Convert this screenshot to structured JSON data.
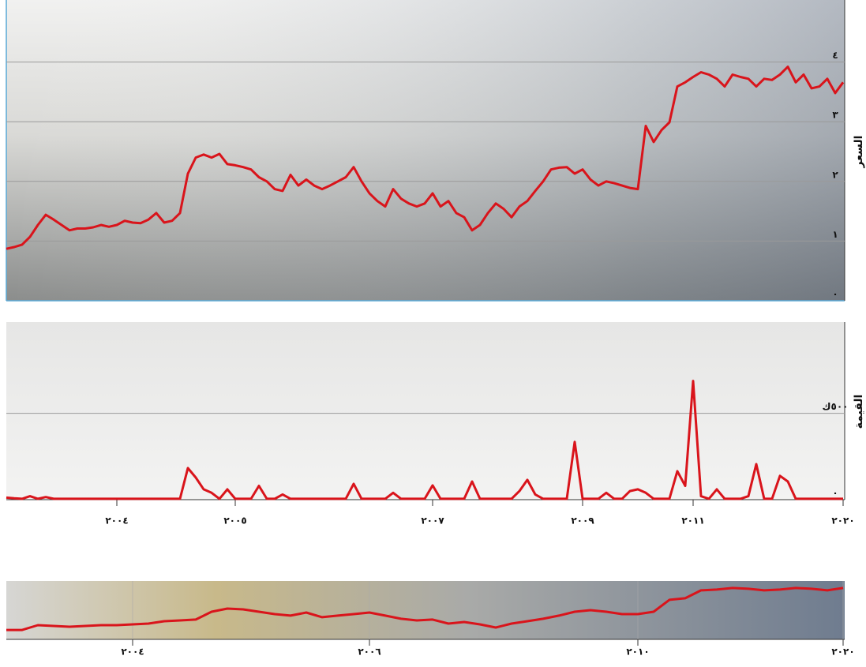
{
  "chart_data": [
    {
      "type": "line",
      "y_label": "السعر",
      "color": "#d9141b",
      "grid": true,
      "ylim": [
        0,
        5
      ],
      "yticks": [
        {
          "value": 0,
          "label": "٠"
        },
        {
          "value": 1,
          "label": "١"
        },
        {
          "value": 2,
          "label": "٢"
        },
        {
          "value": 3,
          "label": "٣"
        },
        {
          "value": 4,
          "label": "٤"
        }
      ],
      "values": [
        0.87,
        0.9,
        0.94,
        1.07,
        1.27,
        1.44,
        1.36,
        1.27,
        1.18,
        1.21,
        1.21,
        1.23,
        1.27,
        1.24,
        1.27,
        1.34,
        1.31,
        1.3,
        1.36,
        1.47,
        1.31,
        1.34,
        1.47,
        2.13,
        2.4,
        2.45,
        2.4,
        2.46,
        2.29,
        2.27,
        2.24,
        2.2,
        2.07,
        2.0,
        1.87,
        1.84,
        2.11,
        1.93,
        2.03,
        1.93,
        1.87,
        1.93,
        2.0,
        2.07,
        2.24,
        2.0,
        1.8,
        1.67,
        1.58,
        1.87,
        1.71,
        1.63,
        1.58,
        1.63,
        1.8,
        1.58,
        1.67,
        1.47,
        1.4,
        1.18,
        1.27,
        1.47,
        1.63,
        1.54,
        1.4,
        1.58,
        1.67,
        1.84,
        2.0,
        2.2,
        2.23,
        2.24,
        2.13,
        2.2,
        2.03,
        1.93,
        2.0,
        1.97,
        1.93,
        1.89,
        1.87,
        2.93,
        2.66,
        2.86,
        2.99,
        3.59,
        3.66,
        3.75,
        3.83,
        3.79,
        3.72,
        3.59,
        3.79,
        3.75,
        3.72,
        3.59,
        3.72,
        3.7,
        3.79,
        3.92,
        3.66,
        3.79,
        3.56,
        3.59,
        3.72,
        3.48,
        3.66
      ]
    },
    {
      "type": "line",
      "y_label": "القيمة",
      "color": "#d9141b",
      "grid": true,
      "ylim": [
        0,
        1020000
      ],
      "yticks": [
        {
          "value": 0,
          "label": "٠"
        },
        {
          "value": 500000,
          "label": "٥٠٠ك"
        }
      ],
      "categories": [
        null,
        null,
        null,
        null,
        null,
        null,
        null,
        null,
        null,
        null,
        null,
        null,
        null,
        null,
        "٢٠٠٤",
        null,
        null,
        null,
        null,
        null,
        null,
        null,
        null,
        null,
        null,
        null,
        null,
        null,
        null,
        "٢٠٠٥",
        null,
        null,
        null,
        null,
        null,
        null,
        null,
        null,
        null,
        null,
        null,
        null,
        null,
        null,
        null,
        null,
        null,
        null,
        null,
        null,
        null,
        null,
        null,
        null,
        "٢٠٠٧",
        null,
        null,
        null,
        null,
        null,
        null,
        null,
        null,
        null,
        null,
        null,
        null,
        null,
        null,
        null,
        null,
        null,
        null,
        "٢٠٠٩",
        null,
        null,
        null,
        null,
        null,
        null,
        null,
        null,
        null,
        null,
        null,
        null,
        null,
        "٢٠١١",
        null,
        null,
        null,
        null,
        null,
        null,
        null,
        null,
        null,
        null,
        null,
        null,
        null,
        null,
        null,
        null,
        null,
        null,
        "٢٠٢٠"
      ],
      "values": [
        12000,
        8000,
        5000,
        20000,
        5000,
        15000,
        5000,
        5000,
        5000,
        5000,
        5000,
        5000,
        5000,
        5000,
        5000,
        5000,
        5000,
        5000,
        5000,
        5000,
        5000,
        5000,
        5000,
        183000,
        128000,
        60000,
        40000,
        5000,
        60000,
        5000,
        5000,
        5000,
        80000,
        5000,
        5000,
        30000,
        5000,
        5000,
        5000,
        5000,
        5000,
        5000,
        5000,
        5000,
        92000,
        5000,
        5000,
        5000,
        5000,
        40000,
        5000,
        5000,
        5000,
        5000,
        83000,
        5000,
        5000,
        5000,
        5000,
        105000,
        5000,
        5000,
        5000,
        5000,
        5000,
        50000,
        115000,
        30000,
        5000,
        5000,
        5000,
        5000,
        335000,
        5000,
        5000,
        5000,
        40000,
        5000,
        5000,
        50000,
        60000,
        40000,
        5000,
        5000,
        5000,
        165000,
        80000,
        688000,
        20000,
        5000,
        60000,
        5000,
        5000,
        5000,
        20000,
        206000,
        5000,
        5000,
        138000,
        105000,
        5000,
        5000,
        5000,
        5000,
        5000,
        5000,
        5000
      ]
    },
    {
      "type": "line",
      "color": "#d9141b",
      "grid": false,
      "ylim": [
        0,
        4.4
      ],
      "categories": [
        null,
        null,
        null,
        null,
        null,
        null,
        null,
        null,
        "٢٠٠٤",
        null,
        null,
        null,
        null,
        null,
        null,
        null,
        null,
        null,
        null,
        null,
        null,
        null,
        null,
        "٢٠٠٦",
        null,
        null,
        null,
        null,
        null,
        null,
        null,
        null,
        null,
        null,
        null,
        null,
        null,
        null,
        null,
        null,
        "٢٠١٠",
        null,
        null,
        null,
        null,
        null,
        null,
        null,
        null,
        null,
        null,
        null,
        null,
        "٢٠٢٠"
      ],
      "values": [
        0.71,
        0.71,
        1.07,
        1.01,
        0.95,
        1.01,
        1.07,
        1.07,
        1.13,
        1.19,
        1.37,
        1.43,
        1.49,
        2.08,
        2.32,
        2.26,
        2.08,
        1.9,
        1.79,
        2.02,
        1.67,
        1.79,
        1.9,
        2.02,
        1.79,
        1.55,
        1.43,
        1.49,
        1.19,
        1.31,
        1.13,
        0.89,
        1.19,
        1.37,
        1.55,
        1.79,
        2.08,
        2.2,
        2.08,
        1.9,
        1.9,
        2.08,
        2.98,
        3.1,
        3.69,
        3.75,
        3.87,
        3.81,
        3.69,
        3.75,
        3.87,
        3.81,
        3.69,
        3.87
      ]
    }
  ]
}
